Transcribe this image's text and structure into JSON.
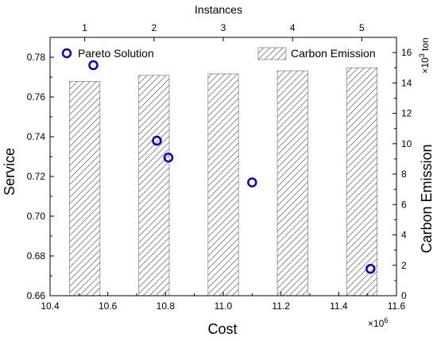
{
  "chart_data": {
    "type": "scatter",
    "title": "",
    "x_axis_bottom": {
      "label": "Cost",
      "range": [
        10.4,
        11.6
      ],
      "ticks": [
        "10.4",
        "10.6",
        "10.8",
        "11.0",
        "11.2",
        "11.4",
        "11.6"
      ],
      "multiplier_label": "×10",
      "multiplier_exponent": "6"
    },
    "x_axis_top": {
      "label": "Instances",
      "ticks": [
        "1",
        "2",
        "3",
        "4",
        "5"
      ]
    },
    "y_axis_left": {
      "label": "Service",
      "range": [
        0.66,
        0.79
      ],
      "ticks": [
        "0.66",
        "0.68",
        "0.70",
        "0.72",
        "0.74",
        "0.76",
        "0.78"
      ]
    },
    "y_axis_right": {
      "label": "Carbon Emission",
      "range": [
        0,
        17
      ],
      "ticks": [
        "0",
        "2",
        "4",
        "6",
        "8",
        "10",
        "12",
        "14",
        "16"
      ],
      "unit_prefix": "×10",
      "unit_exponent": "3",
      "unit_suffix": " ton"
    },
    "series": [
      {
        "name": "Pareto Solution",
        "type": "scatter",
        "axis": "left",
        "color": "#0000cc",
        "points": [
          {
            "x": 10.55,
            "y": 0.776
          },
          {
            "x": 10.77,
            "y": 0.738
          },
          {
            "x": 10.81,
            "y": 0.7295
          },
          {
            "x": 11.1,
            "y": 0.717
          },
          {
            "x": 11.51,
            "y": 0.6735
          }
        ]
      },
      {
        "name": "Carbon Emission",
        "type": "bar",
        "axis": "right",
        "pattern": "diagonal-hatch",
        "color": "#888888",
        "categories": [
          "1",
          "2",
          "3",
          "4",
          "5"
        ],
        "values": [
          14.1,
          14.5,
          14.6,
          14.8,
          15.0
        ]
      }
    ],
    "legend": [
      "Pareto Solution",
      "Carbon Emission"
    ],
    "grid": false
  }
}
